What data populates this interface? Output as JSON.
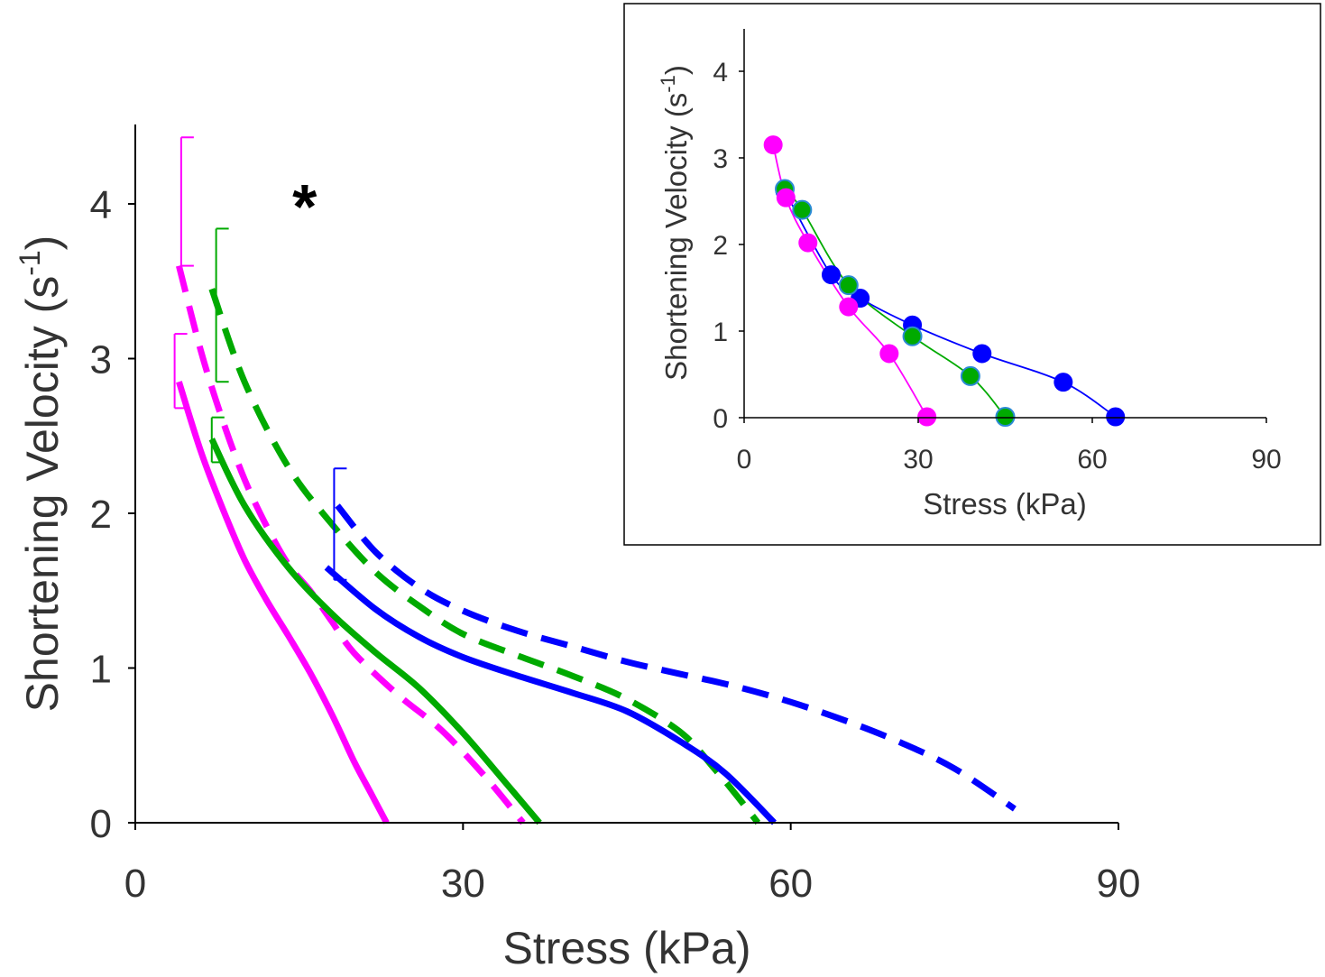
{
  "chart_data": [
    {
      "id": "main",
      "type": "line",
      "title": "",
      "xlabel": "Stress (kPa)",
      "ylabel_main": "Shortening Velocity (s",
      "ylabel_sup": "-1",
      "ylabel_close": ")",
      "xlim": [
        0,
        90
      ],
      "ylim": [
        0,
        4.5
      ],
      "xticks": [
        0,
        30,
        60,
        90
      ],
      "yticks": [
        0,
        1,
        2,
        3,
        4
      ],
      "grid": false,
      "annotation": "*",
      "annotation_at": [
        15.5,
        4.1
      ],
      "series": [
        {
          "name": "magenta-solid",
          "color": "#ff00ff",
          "dash": false,
          "x": [
            4,
            6,
            8,
            10,
            12,
            14,
            16,
            18,
            20,
            21.5,
            23
          ],
          "y": [
            2.85,
            2.4,
            2.03,
            1.7,
            1.44,
            1.21,
            0.97,
            0.7,
            0.4,
            0.2,
            0.0
          ]
        },
        {
          "name": "magenta-dashed",
          "color": "#ff00ff",
          "dash": true,
          "x": [
            4,
            6,
            8,
            10,
            12,
            14,
            16,
            18,
            20,
            24,
            28,
            32,
            35.5
          ],
          "y": [
            3.6,
            3.05,
            2.6,
            2.22,
            1.92,
            1.67,
            1.5,
            1.3,
            1.1,
            0.83,
            0.6,
            0.3,
            0.0
          ]
        },
        {
          "name": "green-solid",
          "color": "#00aa00",
          "dash": false,
          "x": [
            7,
            10,
            14,
            18,
            22,
            26,
            30,
            34,
            37
          ],
          "y": [
            2.48,
            2.05,
            1.65,
            1.35,
            1.1,
            0.87,
            0.58,
            0.25,
            0.0
          ]
        },
        {
          "name": "green-dashed",
          "color": "#00aa00",
          "dash": true,
          "x": [
            7,
            10,
            14,
            18,
            22,
            26,
            30,
            35,
            40,
            45,
            50,
            53,
            55,
            57
          ],
          "y": [
            3.45,
            2.85,
            2.3,
            1.93,
            1.62,
            1.4,
            1.22,
            1.08,
            0.95,
            0.8,
            0.58,
            0.35,
            0.18,
            0.0
          ]
        },
        {
          "name": "blue-solid",
          "color": "#0000ff",
          "dash": false,
          "x": [
            17.5,
            22,
            26,
            30,
            35,
            40,
            45,
            50,
            54,
            58.5
          ],
          "y": [
            1.65,
            1.38,
            1.2,
            1.07,
            0.95,
            0.84,
            0.72,
            0.52,
            0.32,
            0.0
          ]
        },
        {
          "name": "blue-dashed",
          "color": "#0000ff",
          "dash": true,
          "x": [
            18.5,
            22,
            26,
            30,
            35,
            40,
            45,
            50,
            55,
            60,
            65,
            70,
            75,
            80.5
          ],
          "y": [
            2.05,
            1.75,
            1.52,
            1.37,
            1.24,
            1.14,
            1.04,
            0.96,
            0.88,
            0.78,
            0.66,
            0.52,
            0.35,
            0.09
          ]
        }
      ],
      "error_bars": [
        {
          "color": "#ff00ff",
          "x": 4.2,
          "y_low": 3.6,
          "y_high": 4.43
        },
        {
          "color": "#ff00ff",
          "x": 3.6,
          "y_low": 2.68,
          "y_high": 3.16
        },
        {
          "color": "#00aa00",
          "x": 7.4,
          "y_low": 2.85,
          "y_high": 3.84
        },
        {
          "color": "#00aa00",
          "x": 7.0,
          "y_low": 2.33,
          "y_high": 2.62
        },
        {
          "color": "#0000ff",
          "x": 18.2,
          "y_low": 1.57,
          "y_high": 2.29
        }
      ]
    },
    {
      "id": "inset",
      "type": "scatter",
      "title": "",
      "xlabel": "Stress (kPa)",
      "ylabel_main": "Shortening Velocity (s",
      "ylabel_sup": "-1",
      "ylabel_close": ")",
      "xlim": [
        0,
        90
      ],
      "ylim": [
        0,
        4.5
      ],
      "xticks": [
        0,
        30,
        60,
        90
      ],
      "yticks": [
        0,
        1,
        2,
        3,
        4
      ],
      "grid": false,
      "series": [
        {
          "name": "blue",
          "color": "#0000ff",
          "x": [
            7,
            15,
            20,
            29,
            41,
            55,
            64
          ],
          "y": [
            2.62,
            1.65,
            1.38,
            1.07,
            0.74,
            0.41,
            0.01
          ]
        },
        {
          "name": "green",
          "color": "#00aa00",
          "edge": "#2a8ad4",
          "x": [
            7,
            10,
            18,
            29,
            39,
            45
          ],
          "y": [
            2.64,
            2.4,
            1.53,
            0.94,
            0.48,
            0.01
          ]
        },
        {
          "name": "magenta",
          "color": "#ff00ff",
          "x": [
            5,
            7.2,
            11,
            18,
            25,
            31.5
          ],
          "y": [
            3.15,
            2.54,
            2.02,
            1.28,
            0.74,
            0.01
          ]
        }
      ]
    }
  ]
}
